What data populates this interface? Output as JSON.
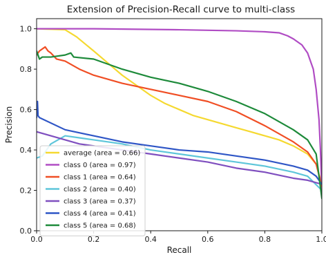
{
  "chart_data": {
    "type": "line",
    "title": "Extension of Precision-Recall curve to multi-class",
    "xlabel": "Recall",
    "ylabel": "Precision",
    "xlim": [
      0.0,
      1.0
    ],
    "ylim": [
      0.0,
      1.05
    ],
    "xticks": [
      "0.0",
      "0.2",
      "0.4",
      "0.6",
      "0.8",
      "1.0"
    ],
    "yticks": [
      "0.0",
      "0.2",
      "0.4",
      "0.6",
      "0.8",
      "1.0"
    ],
    "xtick_values": [
      0.0,
      0.2,
      0.4,
      0.6,
      0.8,
      1.0
    ],
    "ytick_values": [
      0.0,
      0.2,
      0.4,
      0.6,
      0.8,
      1.0
    ],
    "grid": false,
    "legend_position": "lower-left",
    "series": [
      {
        "name": "average (area = 0.66)",
        "color": "#f5d930",
        "points": [
          [
            0.0,
            1.0
          ],
          [
            0.1,
            0.995
          ],
          [
            0.14,
            0.96
          ],
          [
            0.2,
            0.89
          ],
          [
            0.25,
            0.83
          ],
          [
            0.3,
            0.77
          ],
          [
            0.35,
            0.72
          ],
          [
            0.4,
            0.67
          ],
          [
            0.45,
            0.63
          ],
          [
            0.5,
            0.6
          ],
          [
            0.55,
            0.57
          ],
          [
            0.6,
            0.55
          ],
          [
            0.65,
            0.53
          ],
          [
            0.7,
            0.51
          ],
          [
            0.75,
            0.49
          ],
          [
            0.8,
            0.47
          ],
          [
            0.85,
            0.45
          ],
          [
            0.9,
            0.42
          ],
          [
            0.95,
            0.38
          ],
          [
            0.98,
            0.33
          ],
          [
            1.0,
            0.23
          ]
        ]
      },
      {
        "name": "class 0 (area = 0.97)",
        "color": "#b04cc4",
        "points": [
          [
            0.0,
            1.0
          ],
          [
            0.2,
            1.0
          ],
          [
            0.5,
            0.995
          ],
          [
            0.7,
            0.99
          ],
          [
            0.8,
            0.985
          ],
          [
            0.85,
            0.98
          ],
          [
            0.88,
            0.965
          ],
          [
            0.9,
            0.95
          ],
          [
            0.93,
            0.92
          ],
          [
            0.95,
            0.88
          ],
          [
            0.97,
            0.8
          ],
          [
            0.98,
            0.7
          ],
          [
            0.99,
            0.55
          ],
          [
            0.995,
            0.4
          ],
          [
            1.0,
            0.2
          ]
        ]
      },
      {
        "name": "class 1 (area = 0.64)",
        "color": "#f04e24",
        "points": [
          [
            0.0,
            0.87
          ],
          [
            0.01,
            0.89
          ],
          [
            0.03,
            0.91
          ],
          [
            0.04,
            0.89
          ],
          [
            0.05,
            0.88
          ],
          [
            0.07,
            0.85
          ],
          [
            0.1,
            0.84
          ],
          [
            0.15,
            0.8
          ],
          [
            0.2,
            0.77
          ],
          [
            0.3,
            0.73
          ],
          [
            0.4,
            0.7
          ],
          [
            0.5,
            0.67
          ],
          [
            0.6,
            0.64
          ],
          [
            0.7,
            0.59
          ],
          [
            0.8,
            0.52
          ],
          [
            0.9,
            0.44
          ],
          [
            0.95,
            0.39
          ],
          [
            0.98,
            0.33
          ],
          [
            1.0,
            0.22
          ]
        ]
      },
      {
        "name": "class 2 (area = 0.40)",
        "color": "#5ec6da",
        "points": [
          [
            0.0,
            0.36
          ],
          [
            0.02,
            0.37
          ],
          [
            0.05,
            0.43
          ],
          [
            0.1,
            0.47
          ],
          [
            0.15,
            0.46
          ],
          [
            0.2,
            0.45
          ],
          [
            0.3,
            0.43
          ],
          [
            0.4,
            0.4
          ],
          [
            0.5,
            0.38
          ],
          [
            0.6,
            0.36
          ],
          [
            0.7,
            0.34
          ],
          [
            0.8,
            0.32
          ],
          [
            0.9,
            0.29
          ],
          [
            0.95,
            0.27
          ],
          [
            1.0,
            0.2
          ]
        ]
      },
      {
        "name": "class 3 (area = 0.37)",
        "color": "#7f4fbf",
        "points": [
          [
            0.0,
            0.49
          ],
          [
            0.05,
            0.47
          ],
          [
            0.1,
            0.45
          ],
          [
            0.15,
            0.43
          ],
          [
            0.2,
            0.42
          ],
          [
            0.3,
            0.4
          ],
          [
            0.4,
            0.38
          ],
          [
            0.5,
            0.36
          ],
          [
            0.6,
            0.34
          ],
          [
            0.7,
            0.31
          ],
          [
            0.8,
            0.29
          ],
          [
            0.9,
            0.26
          ],
          [
            0.95,
            0.25
          ],
          [
            1.0,
            0.23
          ]
        ]
      },
      {
        "name": "class 4 (area = 0.41)",
        "color": "#2f56c6",
        "points": [
          [
            0.0,
            0.56
          ],
          [
            0.003,
            0.64
          ],
          [
            0.005,
            0.57
          ],
          [
            0.01,
            0.56
          ],
          [
            0.1,
            0.5
          ],
          [
            0.2,
            0.47
          ],
          [
            0.3,
            0.44
          ],
          [
            0.4,
            0.42
          ],
          [
            0.5,
            0.4
          ],
          [
            0.6,
            0.39
          ],
          [
            0.7,
            0.37
          ],
          [
            0.8,
            0.35
          ],
          [
            0.9,
            0.32
          ],
          [
            0.95,
            0.3
          ],
          [
            0.98,
            0.27
          ],
          [
            1.0,
            0.23
          ]
        ]
      },
      {
        "name": "class 5 (area = 0.68)",
        "color": "#1d8a3a",
        "points": [
          [
            0.0,
            0.89
          ],
          [
            0.01,
            0.85
          ],
          [
            0.02,
            0.86
          ],
          [
            0.05,
            0.86
          ],
          [
            0.1,
            0.87
          ],
          [
            0.12,
            0.88
          ],
          [
            0.13,
            0.86
          ],
          [
            0.2,
            0.85
          ],
          [
            0.3,
            0.8
          ],
          [
            0.4,
            0.76
          ],
          [
            0.5,
            0.73
          ],
          [
            0.6,
            0.69
          ],
          [
            0.7,
            0.64
          ],
          [
            0.8,
            0.58
          ],
          [
            0.9,
            0.5
          ],
          [
            0.95,
            0.45
          ],
          [
            0.98,
            0.38
          ],
          [
            1.0,
            0.16
          ]
        ]
      }
    ]
  }
}
